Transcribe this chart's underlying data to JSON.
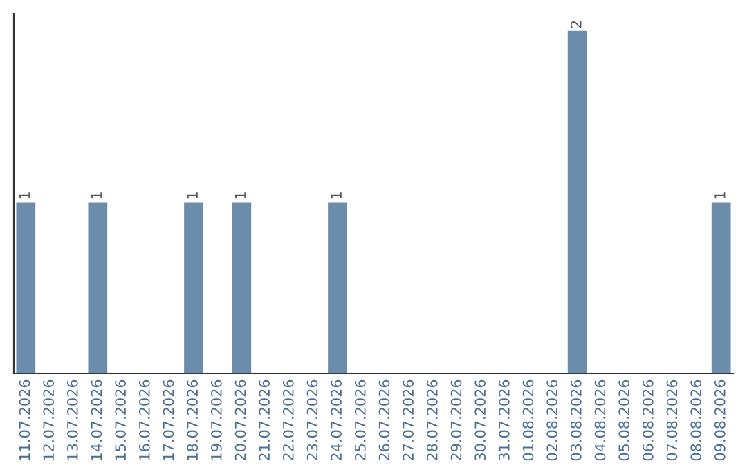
{
  "chart_data": {
    "type": "bar",
    "categories": [
      "11.07.2026",
      "12.07.2026",
      "13.07.2026",
      "14.07.2026",
      "15.07.2026",
      "16.07.2026",
      "17.07.2026",
      "18.07.2026",
      "19.07.2026",
      "20.07.2026",
      "21.07.2026",
      "22.07.2026",
      "23.07.2026",
      "24.07.2026",
      "25.07.2026",
      "26.07.2026",
      "27.07.2026",
      "28.07.2026",
      "29.07.2026",
      "30.07.2026",
      "31.07.2026",
      "01.08.2026",
      "02.08.2026",
      "03.08.2026",
      "04.08.2026",
      "05.08.2026",
      "06.08.2026",
      "07.08.2026",
      "08.08.2026",
      "09.08.2026"
    ],
    "values": [
      1,
      0,
      0,
      1,
      0,
      0,
      0,
      1,
      0,
      1,
      0,
      0,
      0,
      1,
      0,
      0,
      0,
      0,
      0,
      0,
      0,
      0,
      0,
      2,
      0,
      0,
      0,
      0,
      0,
      1
    ],
    "value_labels": [
      "1",
      null,
      null,
      "1",
      null,
      null,
      null,
      "1",
      null,
      "1",
      null,
      null,
      null,
      "1",
      null,
      null,
      null,
      null,
      null,
      null,
      null,
      null,
      null,
      "2",
      null,
      null,
      null,
      null,
      null,
      "1"
    ],
    "color": "#6b8cab",
    "grid": false,
    "legend": false,
    "tick_labels": "x"
  }
}
